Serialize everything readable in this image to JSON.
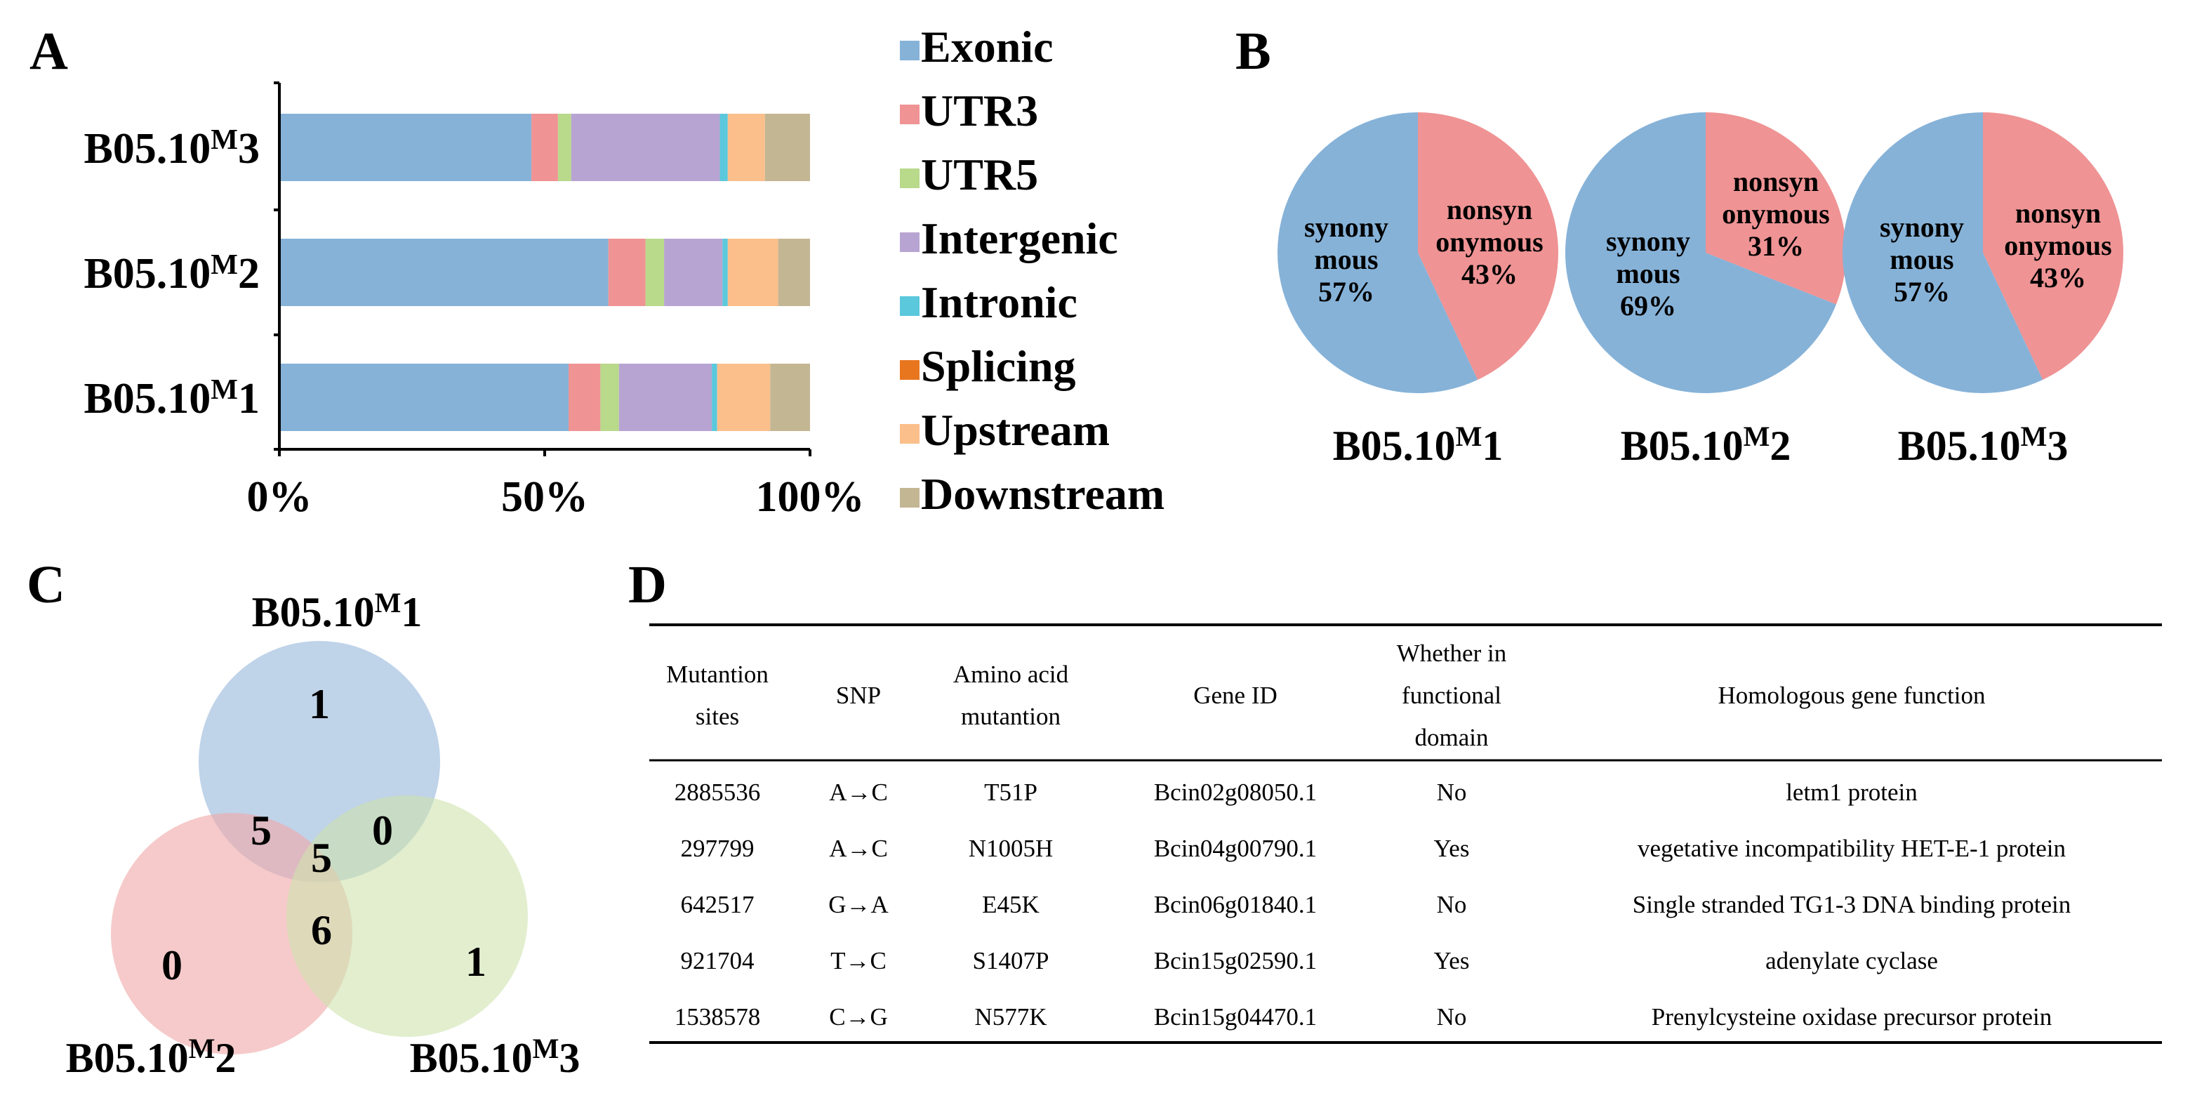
{
  "colors": {
    "Exonic": "#86b2d8",
    "UTR3": "#ef9394",
    "UTR5": "#b9d98b",
    "Intergenic": "#b8a4d2",
    "Intronic": "#5bc8dc",
    "Splicing": "#e8761f",
    "Upstream": "#fbbf8b",
    "Downstream": "#c3b693",
    "synonymous": "#86b2d8",
    "nonsynonymous": "#ef9394",
    "venn_M1": "#a9c4e2",
    "venn_M2": "#f1a9aa",
    "venn_M3": "#cfe2ae"
  },
  "chart_data": [
    {
      "panel": "A",
      "type": "bar",
      "orientation": "horizontal",
      "stacked": "percent",
      "categories": [
        {
          "base": "B05.10",
          "sup": "M",
          "suffix": "3"
        },
        {
          "base": "B05.10",
          "sup": "M",
          "suffix": "2"
        },
        {
          "base": "B05.10",
          "sup": "M",
          "suffix": "1"
        }
      ],
      "series": [
        {
          "name": "Exonic",
          "values": [
            47.5,
            62.0,
            54.5
          ]
        },
        {
          "name": "UTR3",
          "values": [
            5.0,
            7.0,
            6.0
          ]
        },
        {
          "name": "UTR5",
          "values": [
            2.5,
            3.5,
            3.5
          ]
        },
        {
          "name": "Intergenic",
          "values": [
            28.0,
            11.0,
            17.5
          ]
        },
        {
          "name": "Intronic",
          "values": [
            1.5,
            1.0,
            1.0
          ]
        },
        {
          "name": "Splicing",
          "values": [
            0.0,
            0.0,
            0.0
          ]
        },
        {
          "name": "Upstream",
          "values": [
            7.0,
            9.5,
            10.0
          ]
        },
        {
          "name": "Downstream",
          "values": [
            8.5,
            6.0,
            7.5
          ]
        }
      ],
      "xticks": [
        "0%",
        "50%",
        "100%"
      ],
      "xlim": [
        0,
        100
      ],
      "legend": [
        "Exonic",
        "UTR3",
        "UTR5",
        "Intergenic",
        "Intronic",
        "Splicing",
        "Upstream",
        "Downstream"
      ]
    },
    {
      "panel": "B",
      "type": "pie",
      "pies": [
        {
          "label": {
            "base": "B05.10",
            "sup": "M",
            "suffix": "1"
          },
          "slices": [
            {
              "name": "synonymous",
              "lines": [
                "synony",
                "mous"
              ],
              "percent_text": "57%",
              "value": 57
            },
            {
              "name": "nonsynonymous",
              "lines": [
                "nonsyn",
                "onymous"
              ],
              "percent_text": "43%",
              "value": 43
            }
          ]
        },
        {
          "label": {
            "base": "B05.10",
            "sup": "M",
            "suffix": "2"
          },
          "slices": [
            {
              "name": "synonymous",
              "lines": [
                "synony",
                "mous"
              ],
              "percent_text": "69%",
              "value": 69
            },
            {
              "name": "nonsynonymous",
              "lines": [
                "nonsyn",
                "onymous"
              ],
              "percent_text": "31%",
              "value": 31
            }
          ]
        },
        {
          "label": {
            "base": "B05.10",
            "sup": "M",
            "suffix": "3"
          },
          "slices": [
            {
              "name": "synonymous",
              "lines": [
                "synony",
                "mous"
              ],
              "percent_text": "57%",
              "value": 57
            },
            {
              "name": "nonsynonymous",
              "lines": [
                "nonsyn",
                "onymous"
              ],
              "percent_text": "43%",
              "value": 43
            }
          ]
        }
      ]
    }
  ],
  "panels": {
    "A": "A",
    "B": "B",
    "C": "C",
    "D": "D"
  },
  "venn": {
    "sets": [
      {
        "base": "B05.10",
        "sup": "M",
        "suffix": "1"
      },
      {
        "base": "B05.10",
        "sup": "M",
        "suffix": "2"
      },
      {
        "base": "B05.10",
        "sup": "M",
        "suffix": "3"
      }
    ],
    "regions": {
      "only_1": "1",
      "only_2": "0",
      "only_3": "1",
      "1_and_2": "5",
      "1_and_3": "0",
      "2_and_3": "6",
      "all_three": "5"
    }
  },
  "table": {
    "headers": [
      [
        "Mutantion",
        "sites"
      ],
      [
        "SNP"
      ],
      [
        "Amino acid",
        "mutantion"
      ],
      [
        "Gene ID"
      ],
      [
        "Whether in",
        "functional",
        "domain"
      ],
      [
        "Homologous gene function"
      ]
    ],
    "rows": [
      [
        "2885536",
        "A→C",
        "T51P",
        "Bcin02g08050.1",
        "No",
        "letm1 protein"
      ],
      [
        "297799",
        "A→C",
        "N1005H",
        "Bcin04g00790.1",
        "Yes",
        "vegetative incompatibility HET-E-1 protein"
      ],
      [
        "642517",
        "G→A",
        "E45K",
        "Bcin06g01840.1",
        "No",
        "Single stranded TG1-3 DNA binding  protein"
      ],
      [
        "921704",
        "T→C",
        "S1407P",
        "Bcin15g02590.1",
        "Yes",
        "adenylate cyclase"
      ],
      [
        "1538578",
        "C→G",
        "N577K",
        "Bcin15g04470.1",
        "No",
        "Prenylcysteine oxidase precursor protein"
      ]
    ]
  }
}
